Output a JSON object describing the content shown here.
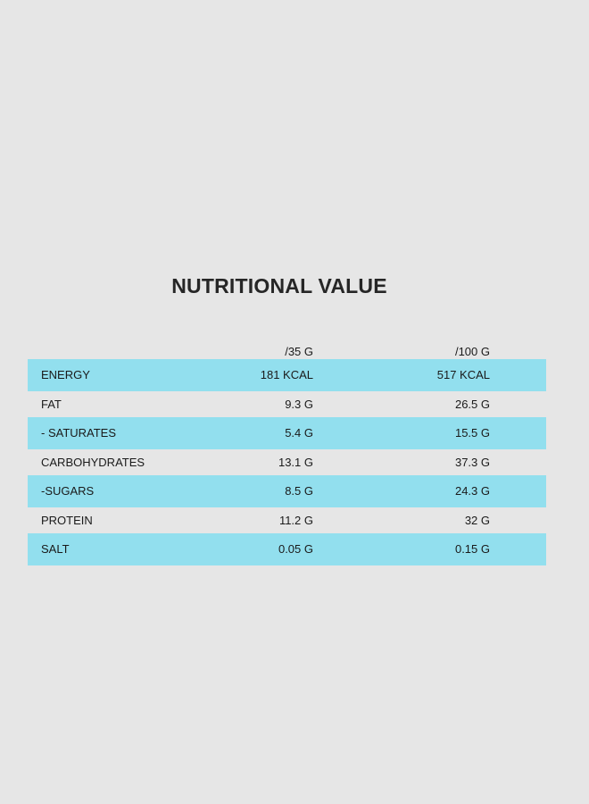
{
  "title": "NUTRITIONAL VALUE",
  "table": {
    "columns": [
      "",
      "/35 G",
      "/100 G"
    ],
    "rows": [
      {
        "label": "ENERGY",
        "per_35g": "181 KCAL",
        "per_100g": "517 KCAL",
        "shaded": true
      },
      {
        "label": "FAT",
        "per_35g": "9.3 G",
        "per_100g": "26.5 G",
        "shaded": false
      },
      {
        "label": "- SATURATES",
        "per_35g": "5.4 G",
        "per_100g": "15.5 G",
        "shaded": true
      },
      {
        "label": "CARBOHYDRATES",
        "per_35g": "13.1 G",
        "per_100g": "37.3 G",
        "shaded": false
      },
      {
        "label": "-SUGARS",
        "per_35g": "8.5 G",
        "per_100g": "24.3 G",
        "shaded": true
      },
      {
        "label": "PROTEIN",
        "per_35g": "11.2 G",
        "per_100g": "32 G",
        "shaded": false
      },
      {
        "label": "SALT",
        "per_35g": "0.05 G",
        "per_100g": "0.15 G",
        "shaded": true
      }
    ]
  },
  "colors": {
    "background": "#e6e6e6",
    "row_highlight": "#92dfee",
    "text": "#1a1a1a"
  }
}
